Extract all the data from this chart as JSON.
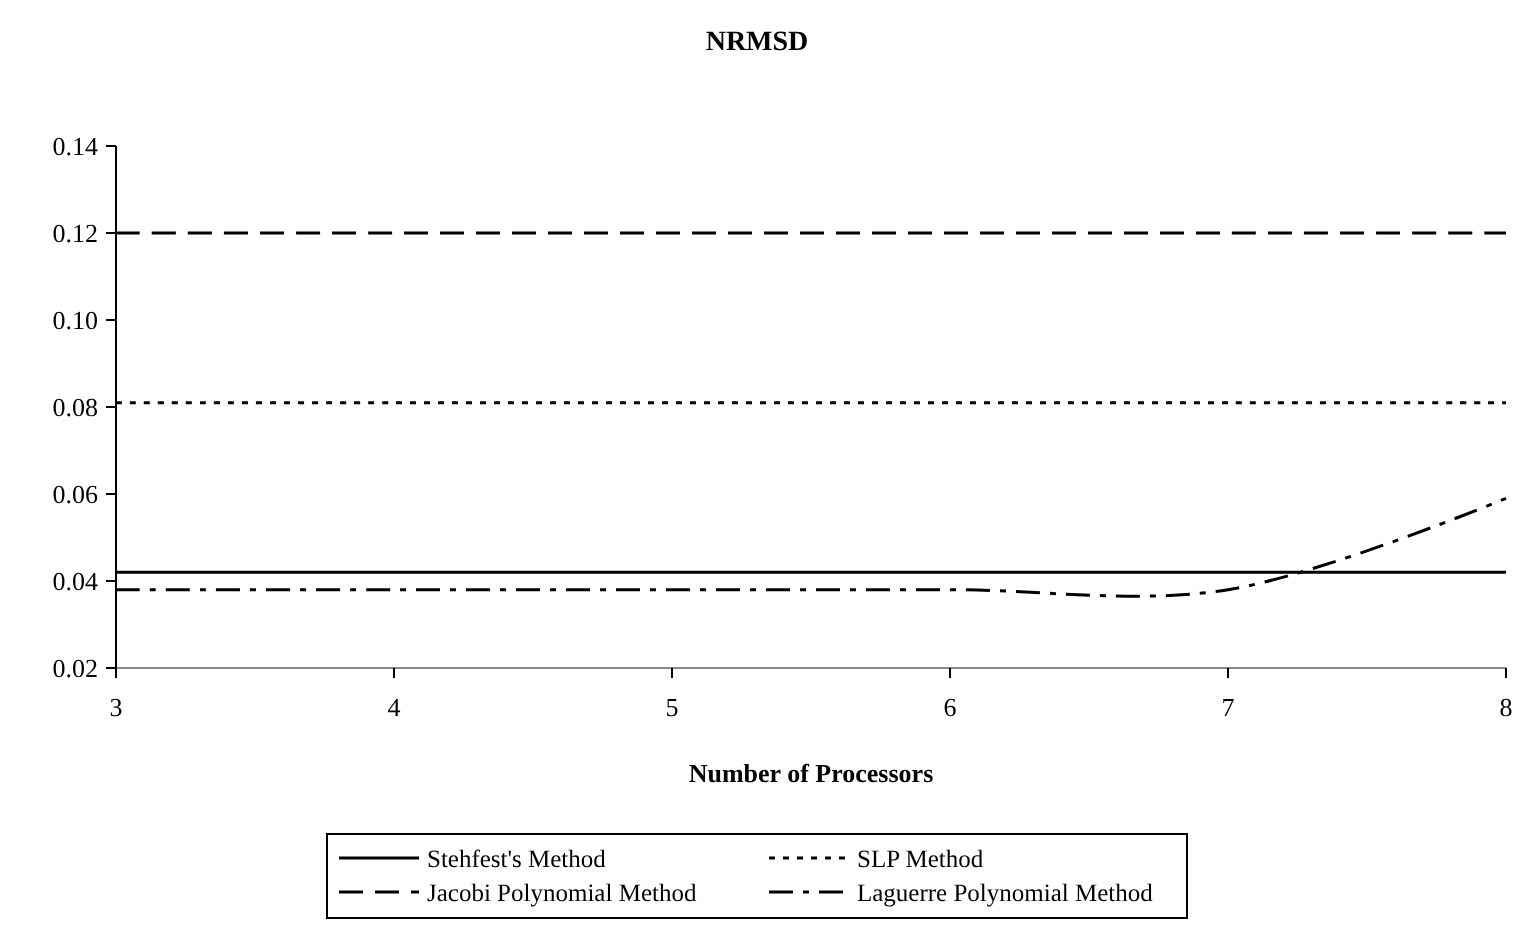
{
  "chart_data": {
    "type": "line",
    "title": "NRMSD",
    "xlabel": "Number of Processors",
    "x": [
      3,
      4,
      5,
      6,
      7,
      8
    ],
    "xlim": [
      3,
      8
    ],
    "xticks": [
      3,
      4,
      5,
      6,
      7,
      8
    ],
    "ylim": [
      0.02,
      0.14
    ],
    "yticks": [
      {
        "value": 0.02,
        "label": "0.02"
      },
      {
        "value": 0.04,
        "label": "0.04"
      },
      {
        "value": 0.06,
        "label": "0.06"
      },
      {
        "value": 0.08,
        "label": "0.08"
      },
      {
        "value": 0.1,
        "label": "0.10"
      },
      {
        "value": 0.12,
        "label": "0.12"
      },
      {
        "value": 0.14,
        "label": "0.14"
      }
    ],
    "grid": false,
    "legend": "bottom",
    "marker": "none",
    "series": [
      {
        "name": "Stehfest's Method",
        "color": "#000000",
        "line_style": "solid",
        "values": [
          0.042,
          0.042,
          0.042,
          0.042,
          0.042,
          0.042
        ]
      },
      {
        "name": "SLP Method",
        "color": "#000000",
        "line_style": "dotted",
        "values": [
          0.081,
          0.081,
          0.081,
          0.081,
          0.081,
          0.081
        ]
      },
      {
        "name": "Jacobi Polynomial Method",
        "color": "#000000",
        "line_style": "dashed",
        "values": [
          0.12,
          0.12,
          0.12,
          0.12,
          0.12,
          0.12
        ]
      },
      {
        "name": "Laguerre Polynomial Method",
        "color": "#000000",
        "line_style": "dashdot",
        "values": [
          0.038,
          0.038,
          0.038,
          0.038,
          0.038,
          0.059
        ]
      }
    ]
  }
}
